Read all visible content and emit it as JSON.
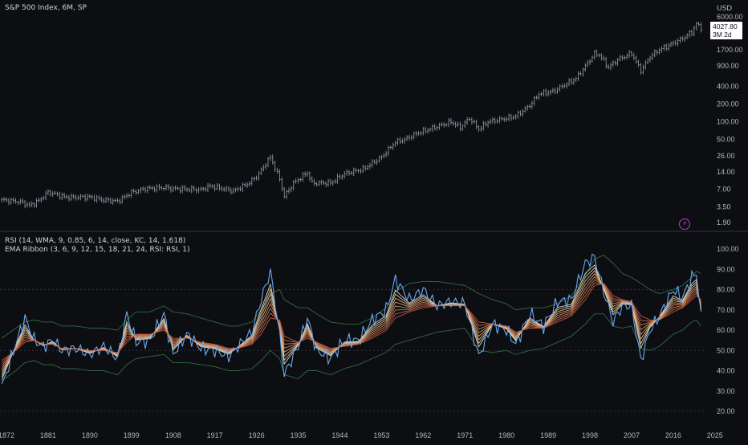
{
  "header": {
    "title": "S&P 500 Index, 6M, SP",
    "currency": "USD",
    "last_price": "4027.80",
    "time_to_close": "3M 2d"
  },
  "rsi_panel": {
    "indicator_1": "RSI (14, WMA, 9, 0.85, 6, 14, close, KC, 14, 1.618)",
    "indicator_2": "EMA Ribbon (3, 6, 9, 12, 15, 18, 21, 24, RSI: RSI, 1)"
  },
  "icons": {
    "alert": "lightning-bolt-icon"
  },
  "colors": {
    "background": "#0d0e12",
    "candles": "#9a9ea8",
    "rsi_line": "#6aa8ee",
    "ribbon_fast": "#e8e3c8",
    "ribbon_slow": "#d0603a",
    "keltner_band": "#2f6a45",
    "level_line": "#3a3d46"
  },
  "chart_data": [
    {
      "type": "line",
      "title": "S&P 500 Index, 6M, SP",
      "scale": "log",
      "ylim": [
        1.5,
        7500
      ],
      "y_ticks": [
        "6000.00",
        "1700.00",
        "900.00",
        "400.00",
        "200.00",
        "100.00",
        "50.00",
        "26.00",
        "14.00",
        "7.00",
        "3.50",
        "1.90"
      ],
      "x_ticks": [
        "1872",
        "1881",
        "1890",
        "1899",
        "1908",
        "1917",
        "1926",
        "1935",
        "1944",
        "1953",
        "1962",
        "1971",
        "1980",
        "1989",
        "1998",
        "2007",
        "2016",
        "2025"
      ],
      "series": [
        {
          "x": [
            1871,
            1875,
            1877,
            1879,
            1881,
            1885,
            1890,
            1893,
            1896,
            1899,
            1902,
            1906,
            1908,
            1914,
            1916,
            1918,
            1921,
            1924,
            1926,
            1929,
            1931,
            1932,
            1934,
            1937,
            1938,
            1942,
            1945,
            1949,
            1953,
            1956,
            1958,
            1961,
            1966,
            1968,
            1970,
            1972,
            1974,
            1976,
            1980,
            1982,
            1985,
            1987,
            1990,
            1995,
            1999,
            2000,
            2002,
            2004,
            2007,
            2009,
            2011,
            2013,
            2016,
            2018,
            2020,
            2021,
            2022
          ],
          "y": [
            4.6,
            4.3,
            3.7,
            4.5,
            6.3,
            5.1,
            5.2,
            4.6,
            4.4,
            6.2,
            7.2,
            7.5,
            7.2,
            6.9,
            8.0,
            7.4,
            6.6,
            8.6,
            11.5,
            25.0,
            10.5,
            5.3,
            9.0,
            13.5,
            9.0,
            9.0,
            13.0,
            15.5,
            25.0,
            45.0,
            50.0,
            65.0,
            88.0,
            100.0,
            80.0,
            115.0,
            75.0,
            100.0,
            115.0,
            125.0,
            190.0,
            300.0,
            330.0,
            550.0,
            1450.0,
            1400.0,
            850.0,
            1150.0,
            1480.0,
            750.0,
            1300.0,
            1700.0,
            2200.0,
            2650.0,
            3400.0,
            4700.0,
            4027.8
          ]
        }
      ]
    },
    {
      "type": "line",
      "title": "RSI (14, WMA, 9, 0.85, 6, 14, close, KC, 14, 1.618)",
      "ylim": [
        15,
        103
      ],
      "y_ticks": [
        "100.00",
        "90.00",
        "80.00",
        "70.00",
        "60.00",
        "50.00",
        "40.00",
        "30.00",
        "20.00"
      ],
      "reference_levels": [
        80,
        50,
        20
      ],
      "x": [
        1871,
        1874,
        1876,
        1878,
        1880,
        1882,
        1884,
        1887,
        1890,
        1893,
        1896,
        1898,
        1900,
        1903,
        1906,
        1908,
        1911,
        1914,
        1917,
        1920,
        1922,
        1925,
        1927,
        1929,
        1931,
        1932,
        1935,
        1937,
        1939,
        1942,
        1945,
        1948,
        1951,
        1954,
        1956,
        1959,
        1962,
        1965,
        1968,
        1971,
        1974,
        1977,
        1980,
        1982,
        1985,
        1988,
        1991,
        1994,
        1997,
        1999,
        2001,
        2003,
        2005,
        2007,
        2009,
        2011,
        2013,
        2016,
        2018,
        2020,
        2021,
        2022
      ],
      "series": [
        {
          "name": "RSI",
          "values": [
            32,
            53,
            66,
            55,
            52,
            55,
            50,
            51,
            48,
            52,
            46,
            68,
            54,
            55,
            68,
            48,
            58,
            51,
            50,
            47,
            52,
            59,
            75,
            89,
            58,
            38,
            52,
            66,
            50,
            46,
            55,
            55,
            65,
            70,
            85,
            75,
            80,
            72,
            74,
            73,
            47,
            63,
            60,
            53,
            68,
            62,
            74,
            75,
            93,
            96,
            79,
            64,
            72,
            72,
            45,
            60,
            67,
            80,
            76,
            86,
            88,
            67
          ]
        },
        {
          "name": "EMA Ribbon",
          "values": [
            45,
            50,
            54,
            55,
            53,
            53,
            51,
            51,
            50,
            50,
            49,
            54,
            58,
            58,
            60,
            56,
            56,
            54,
            53,
            51,
            51,
            53,
            58,
            66,
            65,
            57,
            54,
            56,
            54,
            51,
            52,
            53,
            56,
            60,
            66,
            69,
            71,
            72,
            72,
            72,
            64,
            63,
            62,
            59,
            61,
            61,
            64,
            67,
            75,
            82,
            83,
            77,
            75,
            74,
            67,
            65,
            65,
            69,
            71,
            75,
            77,
            75
          ]
        },
        {
          "name": "Keltner Upper",
          "values": [
            56,
            61,
            64,
            65,
            64,
            64,
            62,
            62,
            61,
            61,
            60,
            65,
            69,
            69,
            72,
            69,
            68,
            66,
            64,
            62,
            62,
            64,
            70,
            78,
            80,
            75,
            71,
            71,
            68,
            64,
            63,
            63,
            66,
            71,
            79,
            83,
            84,
            84,
            83,
            82,
            78,
            75,
            73,
            70,
            71,
            71,
            73,
            77,
            87,
            95,
            97,
            93,
            88,
            86,
            83,
            80,
            78,
            80,
            82,
            86,
            89,
            88
          ]
        },
        {
          "name": "Keltner Lower",
          "values": [
            35,
            40,
            44,
            45,
            43,
            43,
            41,
            41,
            40,
            40,
            38,
            43,
            46,
            47,
            48,
            44,
            44,
            43,
            42,
            40,
            40,
            41,
            45,
            50,
            46,
            38,
            36,
            40,
            40,
            38,
            41,
            43,
            46,
            49,
            53,
            55,
            57,
            59,
            60,
            61,
            50,
            49,
            50,
            48,
            50,
            51,
            54,
            57,
            63,
            68,
            68,
            62,
            61,
            62,
            51,
            50,
            52,
            58,
            60,
            64,
            65,
            62
          ]
        }
      ]
    }
  ]
}
